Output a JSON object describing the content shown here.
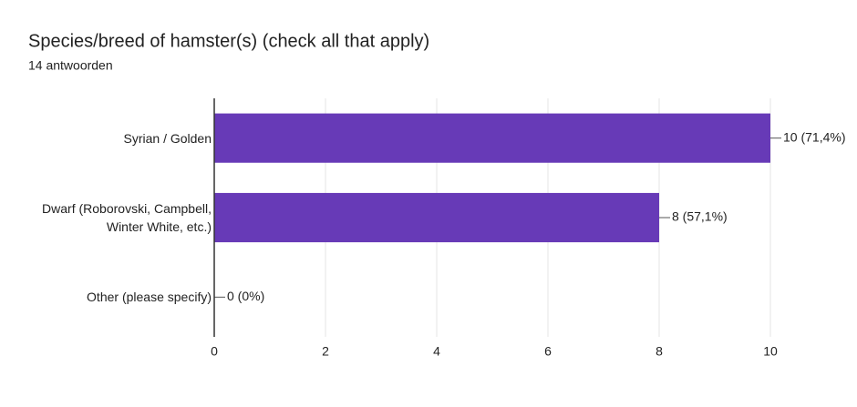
{
  "chart_data": {
    "type": "bar",
    "orientation": "horizontal",
    "title": "Species/breed of hamster(s) (check all that apply)",
    "subtitle": "14 antwoorden",
    "categories": [
      "Syrian / Golden",
      "Dwarf (Roborovski, Campbell, Winter White, etc.)",
      "Other (please specify)"
    ],
    "values": [
      10,
      8,
      0
    ],
    "value_labels": [
      "10 (71,4%)",
      "8 (57,1%)",
      "0 (0%)"
    ],
    "color": "#673ab7",
    "xlim": [
      0,
      10
    ],
    "xticks": [
      0,
      2,
      4,
      6,
      8,
      10
    ],
    "grid": true
  }
}
